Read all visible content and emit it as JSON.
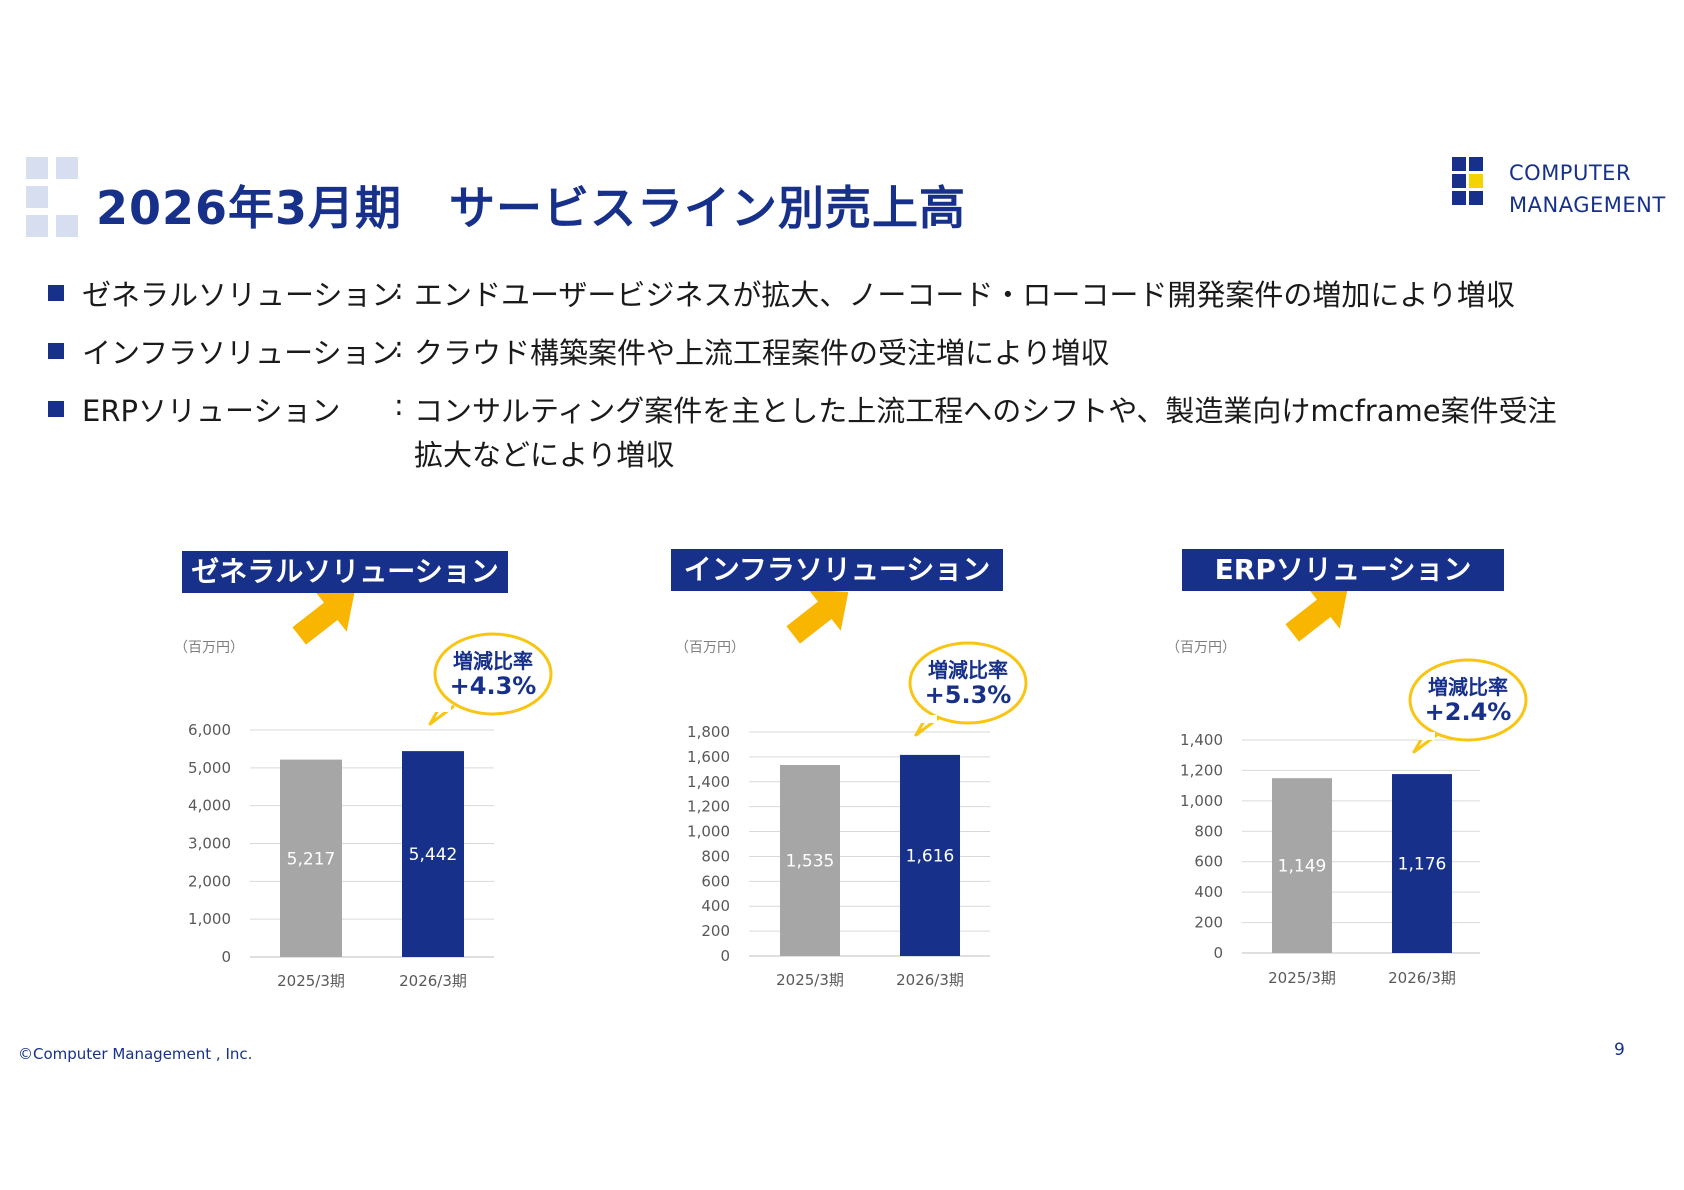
{
  "title": "2026年3月期　サービスライン別売上高",
  "logo": {
    "line1": "COMPUTER",
    "line2": "MANAGEMENT"
  },
  "bullets": [
    {
      "label": "ゼネラルソリューション",
      "colon": ":",
      "text": "エンドユーザービジネスが拡大、ノーコード・ローコード開発案件の増加により増収",
      "text2": ""
    },
    {
      "label": "インフラソリューション",
      "colon": ":",
      "text": "クラウド構築案件や上流工程案件の受注増により増収",
      "text2": ""
    },
    {
      "label": "ERPソリューション",
      "colon": ":",
      "text": "コンサルティング案件を主とした上流工程へのシフトや、製造業向けmcframe案件受注",
      "text2": "拡大などにより増収"
    }
  ],
  "footer": "©Computer Management , Inc.",
  "page_number": "9",
  "colors": {
    "navy": "#17318a",
    "gray": "#a6a6a6",
    "arrow": "#f9b600",
    "bubble_border": "#f9c513"
  },
  "chart_data": [
    {
      "type": "bar",
      "title": "ゼネラルソリューション",
      "unit": "（百万円）",
      "categories": [
        "2025/3期",
        "2026/3期"
      ],
      "values": [
        5217,
        5442
      ],
      "value_labels": [
        "5,217",
        "5,442"
      ],
      "ylim": [
        0,
        6000
      ],
      "yticks": [
        "0",
        "1,000",
        "2,000",
        "3,000",
        "4,000",
        "5,000",
        "6,000"
      ],
      "growth_label": "増減比率",
      "growth_value": "+4.3%",
      "bar_colors": [
        "#a6a6a6",
        "#17318a"
      ],
      "grid": true
    },
    {
      "type": "bar",
      "title": "インフラソリューション",
      "unit": "（百万円）",
      "categories": [
        "2025/3期",
        "2026/3期"
      ],
      "values": [
        1535,
        1616
      ],
      "value_labels": [
        "1,535",
        "1,616"
      ],
      "ylim": [
        0,
        1800
      ],
      "yticks": [
        "0",
        "200",
        "400",
        "600",
        "800",
        "1,000",
        "1,200",
        "1,400",
        "1,600",
        "1,800"
      ],
      "growth_label": "増減比率",
      "growth_value": "+5.3%",
      "bar_colors": [
        "#a6a6a6",
        "#17318a"
      ],
      "grid": true
    },
    {
      "type": "bar",
      "title": "ERPソリューション",
      "unit": "（百万円）",
      "categories": [
        "2025/3期",
        "2026/3期"
      ],
      "values": [
        1149,
        1176
      ],
      "value_labels": [
        "1,149",
        "1,176"
      ],
      "ylim": [
        0,
        1400
      ],
      "yticks": [
        "0",
        "200",
        "400",
        "600",
        "800",
        "1,000",
        "1,200",
        "1,400"
      ],
      "growth_label": "増減比率",
      "growth_value": "+2.4%",
      "bar_colors": [
        "#a6a6a6",
        "#17318a"
      ],
      "grid": true
    }
  ]
}
